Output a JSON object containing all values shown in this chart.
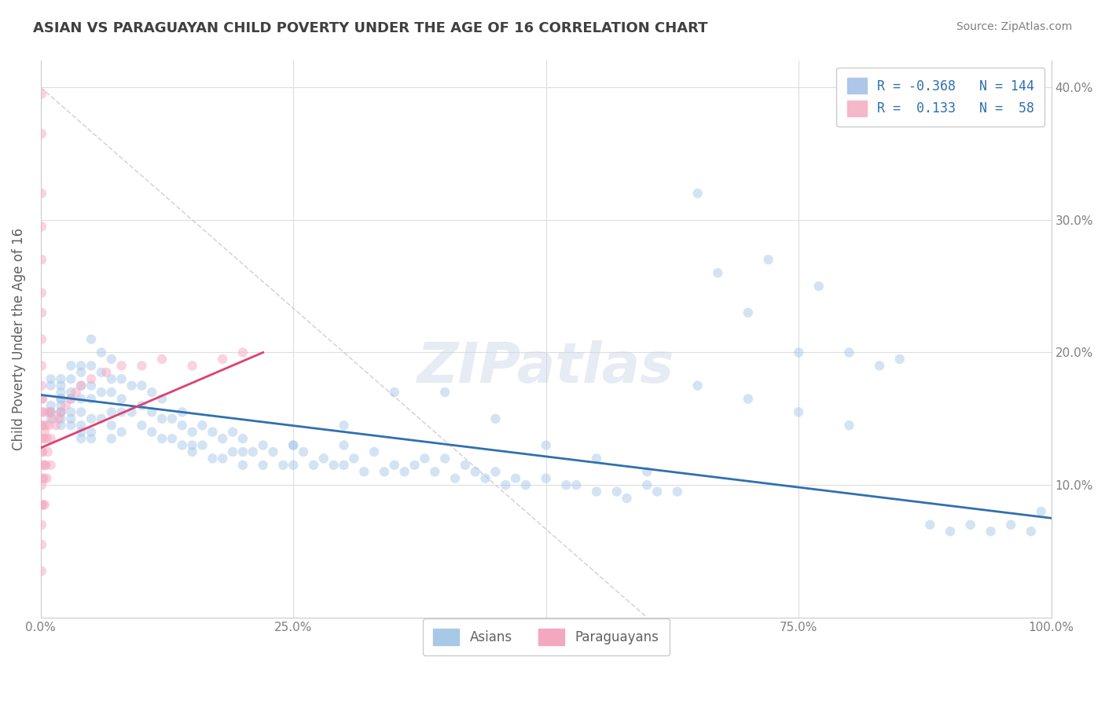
{
  "title": "ASIAN VS PARAGUAYAN CHILD POVERTY UNDER THE AGE OF 16 CORRELATION CHART",
  "source_text": "Source: ZipAtlas.com",
  "xlabel": "",
  "ylabel": "Child Poverty Under the Age of 16",
  "xlim": [
    0,
    1.0
  ],
  "ylim": [
    0,
    0.42
  ],
  "xticks": [
    0.0,
    0.25,
    0.5,
    0.75,
    1.0
  ],
  "xticklabels": [
    "0.0%",
    "25.0%",
    "50.0%",
    "75.0%",
    "100.0%"
  ],
  "yticks": [
    0.0,
    0.1,
    0.2,
    0.3,
    0.4
  ],
  "yticklabels": [
    "",
    "10.0%",
    "20.0%",
    "30.0%",
    "40.0%"
  ],
  "legend_items": [
    {
      "label": "R = -0.368   N = 144",
      "color": "#aec6e8"
    },
    {
      "label": "R =  0.133   N =  58",
      "color": "#f4b8c8"
    }
  ],
  "asian_R": -0.368,
  "asian_N": 144,
  "paraguayan_R": 0.133,
  "paraguayan_N": 58,
  "asian_color": "#a8c8e8",
  "paraguayan_color": "#f4a8c0",
  "asian_line_color": "#3070b0",
  "paraguayan_line_color": "#e04070",
  "watermark": "ZIPatlas",
  "background_color": "#ffffff",
  "grid_color": "#dddddd",
  "title_color": "#404040",
  "title_fontsize": 13,
  "axis_label_color": "#606060",
  "tick_color": "#808080",
  "source_color": "#808080",
  "dot_size": 80,
  "dot_alpha": 0.5,
  "asian_x": [
    0.01,
    0.01,
    0.01,
    0.01,
    0.01,
    0.01,
    0.02,
    0.02,
    0.02,
    0.02,
    0.02,
    0.02,
    0.02,
    0.02,
    0.02,
    0.02,
    0.03,
    0.03,
    0.03,
    0.03,
    0.03,
    0.03,
    0.03,
    0.04,
    0.04,
    0.04,
    0.04,
    0.04,
    0.04,
    0.04,
    0.04,
    0.05,
    0.05,
    0.05,
    0.05,
    0.05,
    0.05,
    0.05,
    0.06,
    0.06,
    0.06,
    0.06,
    0.07,
    0.07,
    0.07,
    0.07,
    0.07,
    0.07,
    0.08,
    0.08,
    0.08,
    0.08,
    0.09,
    0.09,
    0.1,
    0.1,
    0.1,
    0.11,
    0.11,
    0.11,
    0.12,
    0.12,
    0.12,
    0.13,
    0.13,
    0.14,
    0.14,
    0.14,
    0.15,
    0.15,
    0.16,
    0.16,
    0.17,
    0.17,
    0.18,
    0.18,
    0.19,
    0.19,
    0.2,
    0.2,
    0.21,
    0.22,
    0.22,
    0.23,
    0.24,
    0.25,
    0.25,
    0.26,
    0.27,
    0.28,
    0.29,
    0.3,
    0.3,
    0.31,
    0.32,
    0.33,
    0.34,
    0.35,
    0.36,
    0.37,
    0.38,
    0.39,
    0.4,
    0.41,
    0.42,
    0.43,
    0.44,
    0.45,
    0.46,
    0.47,
    0.48,
    0.5,
    0.52,
    0.53,
    0.55,
    0.57,
    0.58,
    0.6,
    0.61,
    0.63,
    0.65,
    0.67,
    0.7,
    0.72,
    0.75,
    0.77,
    0.8,
    0.83,
    0.85,
    0.88,
    0.9,
    0.92,
    0.94,
    0.96,
    0.98,
    0.99,
    0.65,
    0.7,
    0.75,
    0.8,
    0.5,
    0.55,
    0.6,
    0.4,
    0.45,
    0.35,
    0.3,
    0.25,
    0.2,
    0.15
  ],
  "asian_y": [
    0.155,
    0.18,
    0.175,
    0.16,
    0.155,
    0.15,
    0.155,
    0.165,
    0.18,
    0.175,
    0.17,
    0.165,
    0.16,
    0.155,
    0.15,
    0.145,
    0.19,
    0.18,
    0.17,
    0.165,
    0.155,
    0.15,
    0.145,
    0.19,
    0.185,
    0.175,
    0.165,
    0.155,
    0.145,
    0.14,
    0.135,
    0.21,
    0.19,
    0.175,
    0.165,
    0.15,
    0.14,
    0.135,
    0.2,
    0.185,
    0.17,
    0.15,
    0.195,
    0.18,
    0.17,
    0.155,
    0.145,
    0.135,
    0.18,
    0.165,
    0.155,
    0.14,
    0.175,
    0.155,
    0.175,
    0.16,
    0.145,
    0.17,
    0.155,
    0.14,
    0.165,
    0.15,
    0.135,
    0.15,
    0.135,
    0.155,
    0.145,
    0.13,
    0.14,
    0.125,
    0.145,
    0.13,
    0.14,
    0.12,
    0.135,
    0.12,
    0.14,
    0.125,
    0.135,
    0.115,
    0.125,
    0.13,
    0.115,
    0.125,
    0.115,
    0.13,
    0.115,
    0.125,
    0.115,
    0.12,
    0.115,
    0.13,
    0.115,
    0.12,
    0.11,
    0.125,
    0.11,
    0.115,
    0.11,
    0.115,
    0.12,
    0.11,
    0.12,
    0.105,
    0.115,
    0.11,
    0.105,
    0.11,
    0.1,
    0.105,
    0.1,
    0.105,
    0.1,
    0.1,
    0.095,
    0.095,
    0.09,
    0.1,
    0.095,
    0.095,
    0.32,
    0.26,
    0.23,
    0.27,
    0.2,
    0.25,
    0.2,
    0.19,
    0.195,
    0.07,
    0.065,
    0.07,
    0.065,
    0.07,
    0.065,
    0.08,
    0.175,
    0.165,
    0.155,
    0.145,
    0.13,
    0.12,
    0.11,
    0.17,
    0.15,
    0.17,
    0.145,
    0.13,
    0.125,
    0.13
  ],
  "paraguayan_x": [
    0.001,
    0.001,
    0.001,
    0.001,
    0.001,
    0.001,
    0.001,
    0.001,
    0.001,
    0.001,
    0.001,
    0.001,
    0.001,
    0.001,
    0.001,
    0.001,
    0.001,
    0.001,
    0.001,
    0.001,
    0.001,
    0.002,
    0.002,
    0.002,
    0.002,
    0.002,
    0.003,
    0.003,
    0.003,
    0.004,
    0.004,
    0.004,
    0.005,
    0.005,
    0.006,
    0.006,
    0.007,
    0.007,
    0.008,
    0.01,
    0.01,
    0.01,
    0.012,
    0.015,
    0.018,
    0.02,
    0.025,
    0.03,
    0.035,
    0.04,
    0.05,
    0.065,
    0.08,
    0.1,
    0.12,
    0.15,
    0.18,
    0.2
  ],
  "paraguayan_y": [
    0.395,
    0.365,
    0.32,
    0.295,
    0.27,
    0.245,
    0.23,
    0.21,
    0.19,
    0.175,
    0.165,
    0.155,
    0.145,
    0.135,
    0.125,
    0.115,
    0.1,
    0.085,
    0.07,
    0.055,
    0.035,
    0.165,
    0.145,
    0.125,
    0.105,
    0.085,
    0.155,
    0.135,
    0.105,
    0.14,
    0.115,
    0.085,
    0.145,
    0.115,
    0.135,
    0.105,
    0.155,
    0.125,
    0.145,
    0.155,
    0.135,
    0.115,
    0.15,
    0.145,
    0.15,
    0.155,
    0.16,
    0.165,
    0.17,
    0.175,
    0.18,
    0.185,
    0.19,
    0.19,
    0.195,
    0.19,
    0.195,
    0.2
  ]
}
